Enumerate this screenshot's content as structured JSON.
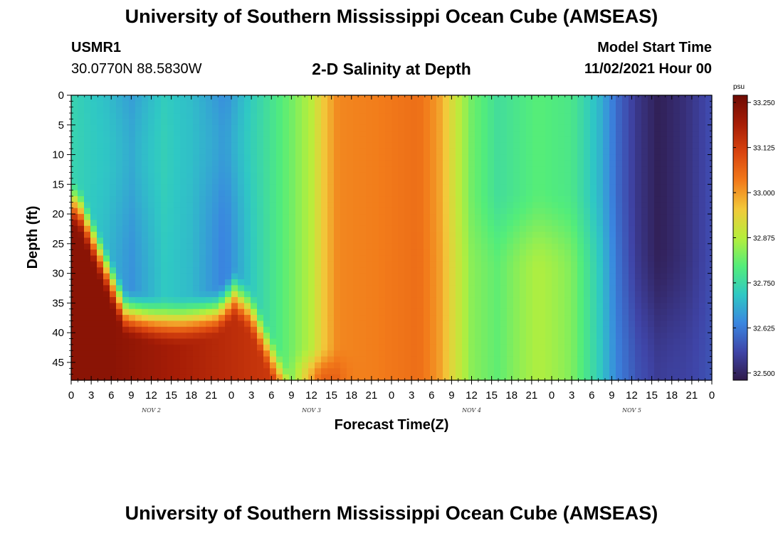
{
  "header": {
    "main_title": "University of Southern Mississippi Ocean Cube (AMSEAS)",
    "station_id": "USMR1",
    "station_coords": "30.0770N  88.5830W",
    "plot_title": "2-D Salinity at Depth",
    "model_start_label": "Model Start Time",
    "model_start_value": "11/02/2021 Hour 00",
    "bottom_title": "University of Southern Mississippi Ocean Cube (AMSEAS)"
  },
  "chart_data": {
    "type": "heatmap",
    "title": "2-D Salinity at Depth",
    "xlabel": "Forecast Time(Z)",
    "ylabel": "Depth (ft)",
    "x_hours_range": [
      0,
      96
    ],
    "y_range": [
      0,
      48
    ],
    "x_tick_labels": [
      "0",
      "3",
      "6",
      "9",
      "12",
      "15",
      "18",
      "21",
      "0",
      "3",
      "6",
      "9",
      "12",
      "15",
      "18",
      "21",
      "0",
      "3",
      "6",
      "9",
      "12",
      "15",
      "18",
      "21",
      "0",
      "3",
      "6",
      "9",
      "12",
      "15",
      "18",
      "21",
      "0"
    ],
    "y_tick_labels": [
      "0",
      "5",
      "10",
      "15",
      "20",
      "25",
      "30",
      "35",
      "40",
      "45"
    ],
    "date_labels": [
      {
        "label": "NOV 2",
        "hour": 12
      },
      {
        "label": "NOV 3",
        "hour": 36
      },
      {
        "label": "NOV 4",
        "hour": 60
      },
      {
        "label": "NOV 5",
        "hour": 84
      }
    ],
    "colorbar": {
      "unit": "psu",
      "range": [
        32.48,
        33.27
      ],
      "tick_labels": [
        "33.250",
        "33.125",
        "33.000",
        "32.875",
        "32.750",
        "32.625",
        "32.500"
      ],
      "tick_values": [
        33.25,
        33.125,
        33.0,
        32.875,
        32.75,
        32.625,
        32.5
      ]
    },
    "surface_salinity_psu": [
      {
        "hour": 0,
        "value": 32.74
      },
      {
        "hour": 5,
        "value": 32.7
      },
      {
        "hour": 9,
        "value": 32.65
      },
      {
        "hour": 14,
        "value": 32.72
      },
      {
        "hour": 18,
        "value": 32.7
      },
      {
        "hour": 23,
        "value": 32.63
      },
      {
        "hour": 27,
        "value": 32.72
      },
      {
        "hour": 33,
        "value": 32.82
      },
      {
        "hour": 36,
        "value": 32.88
      },
      {
        "hour": 38,
        "value": 32.96
      },
      {
        "hour": 40,
        "value": 33.02
      },
      {
        "hour": 46,
        "value": 33.03
      },
      {
        "hour": 52,
        "value": 33.05
      },
      {
        "hour": 55,
        "value": 33.0
      },
      {
        "hour": 57,
        "value": 32.92
      },
      {
        "hour": 60,
        "value": 32.82
      },
      {
        "hour": 64,
        "value": 32.76
      },
      {
        "hour": 70,
        "value": 32.8
      },
      {
        "hour": 75,
        "value": 32.78
      },
      {
        "hour": 79,
        "value": 32.7
      },
      {
        "hour": 82,
        "value": 32.6
      },
      {
        "hour": 85,
        "value": 32.53
      },
      {
        "hour": 88,
        "value": 32.49
      },
      {
        "hour": 92,
        "value": 32.52
      },
      {
        "hour": 96,
        "value": 32.57
      }
    ]
  }
}
